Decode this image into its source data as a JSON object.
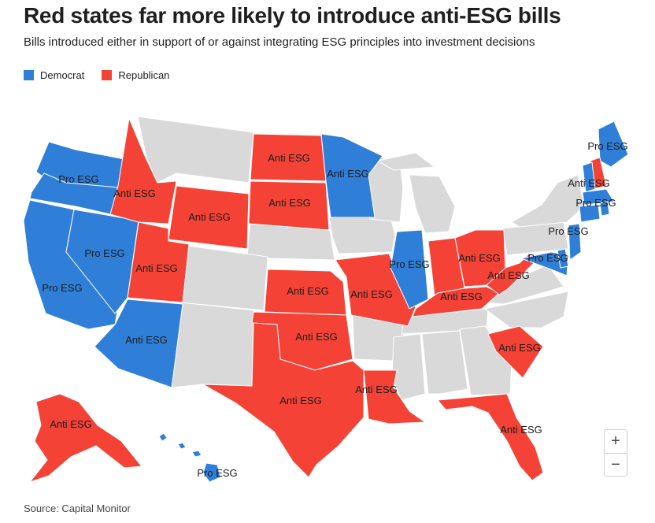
{
  "header": {
    "title": "Red states far more likely to introduce anti-ESG bills",
    "subtitle": "Bills introduced either in support of or against integrating ESG principles into investment decisions"
  },
  "legend": [
    {
      "label": "Democrat",
      "color": "#2f7fd8"
    },
    {
      "label": "Republican",
      "color": "#f44336"
    }
  ],
  "colors": {
    "democrat": "#2f7fd8",
    "republican": "#f44336",
    "none": "#d9d9d9"
  },
  "states": [
    {
      "id": "WA",
      "party": "democrat",
      "label": "Pro ESG"
    },
    {
      "id": "OR",
      "party": "democrat",
      "label": ""
    },
    {
      "id": "CA",
      "party": "democrat",
      "label": "Pro ESG"
    },
    {
      "id": "NV",
      "party": "democrat",
      "label": "Pro ESG"
    },
    {
      "id": "ID",
      "party": "republican",
      "label": "Anti ESG"
    },
    {
      "id": "WY",
      "party": "republican",
      "label": "Anti ESG"
    },
    {
      "id": "UT",
      "party": "republican",
      "label": "Anti ESG"
    },
    {
      "id": "AZ",
      "party": "democrat",
      "label": "Anti ESG"
    },
    {
      "id": "ND",
      "party": "republican",
      "label": "Anti ESG"
    },
    {
      "id": "SD",
      "party": "republican",
      "label": "Anti ESG"
    },
    {
      "id": "MN",
      "party": "democrat",
      "label": "Anti ESG"
    },
    {
      "id": "KS",
      "party": "republican",
      "label": "Anti ESG"
    },
    {
      "id": "OK",
      "party": "republican",
      "label": "Anti ESG"
    },
    {
      "id": "TX",
      "party": "republican",
      "label": "Anti ESG"
    },
    {
      "id": "MO",
      "party": "republican",
      "label": "Anti ESG"
    },
    {
      "id": "LA",
      "party": "republican",
      "label": "Anti ESG"
    },
    {
      "id": "IL",
      "party": "democrat",
      "label": "Pro ESG"
    },
    {
      "id": "IN",
      "party": "republican",
      "label": ""
    },
    {
      "id": "KY",
      "party": "republican",
      "label": "Anti ESG"
    },
    {
      "id": "OH",
      "party": "republican",
      "label": "Anti ESG"
    },
    {
      "id": "WV",
      "party": "republican",
      "label": "Anti ESG"
    },
    {
      "id": "SC",
      "party": "republican",
      "label": "Anti ESG"
    },
    {
      "id": "FL",
      "party": "republican",
      "label": "Anti ESG"
    },
    {
      "id": "AK",
      "party": "republican",
      "label": "Anti ESG"
    },
    {
      "id": "HI",
      "party": "democrat",
      "label": "Pro ESG"
    },
    {
      "id": "ME",
      "party": "democrat",
      "label": "Pro ESG"
    },
    {
      "id": "NH",
      "party": "republican",
      "label": "Anti ESG"
    },
    {
      "id": "VT",
      "party": "democrat",
      "label": ""
    },
    {
      "id": "MA",
      "party": "democrat",
      "label": "Pro ESG"
    },
    {
      "id": "CT",
      "party": "democrat",
      "label": ""
    },
    {
      "id": "RI",
      "party": "democrat",
      "label": ""
    },
    {
      "id": "NJ",
      "party": "democrat",
      "label": "Pro ESG"
    },
    {
      "id": "MD",
      "party": "democrat",
      "label": "Pro ESG"
    },
    {
      "id": "DE",
      "party": "democrat",
      "label": ""
    }
  ],
  "zoom": {
    "in_label": "+",
    "out_label": "−"
  },
  "source": "Source: Capital Monitor"
}
